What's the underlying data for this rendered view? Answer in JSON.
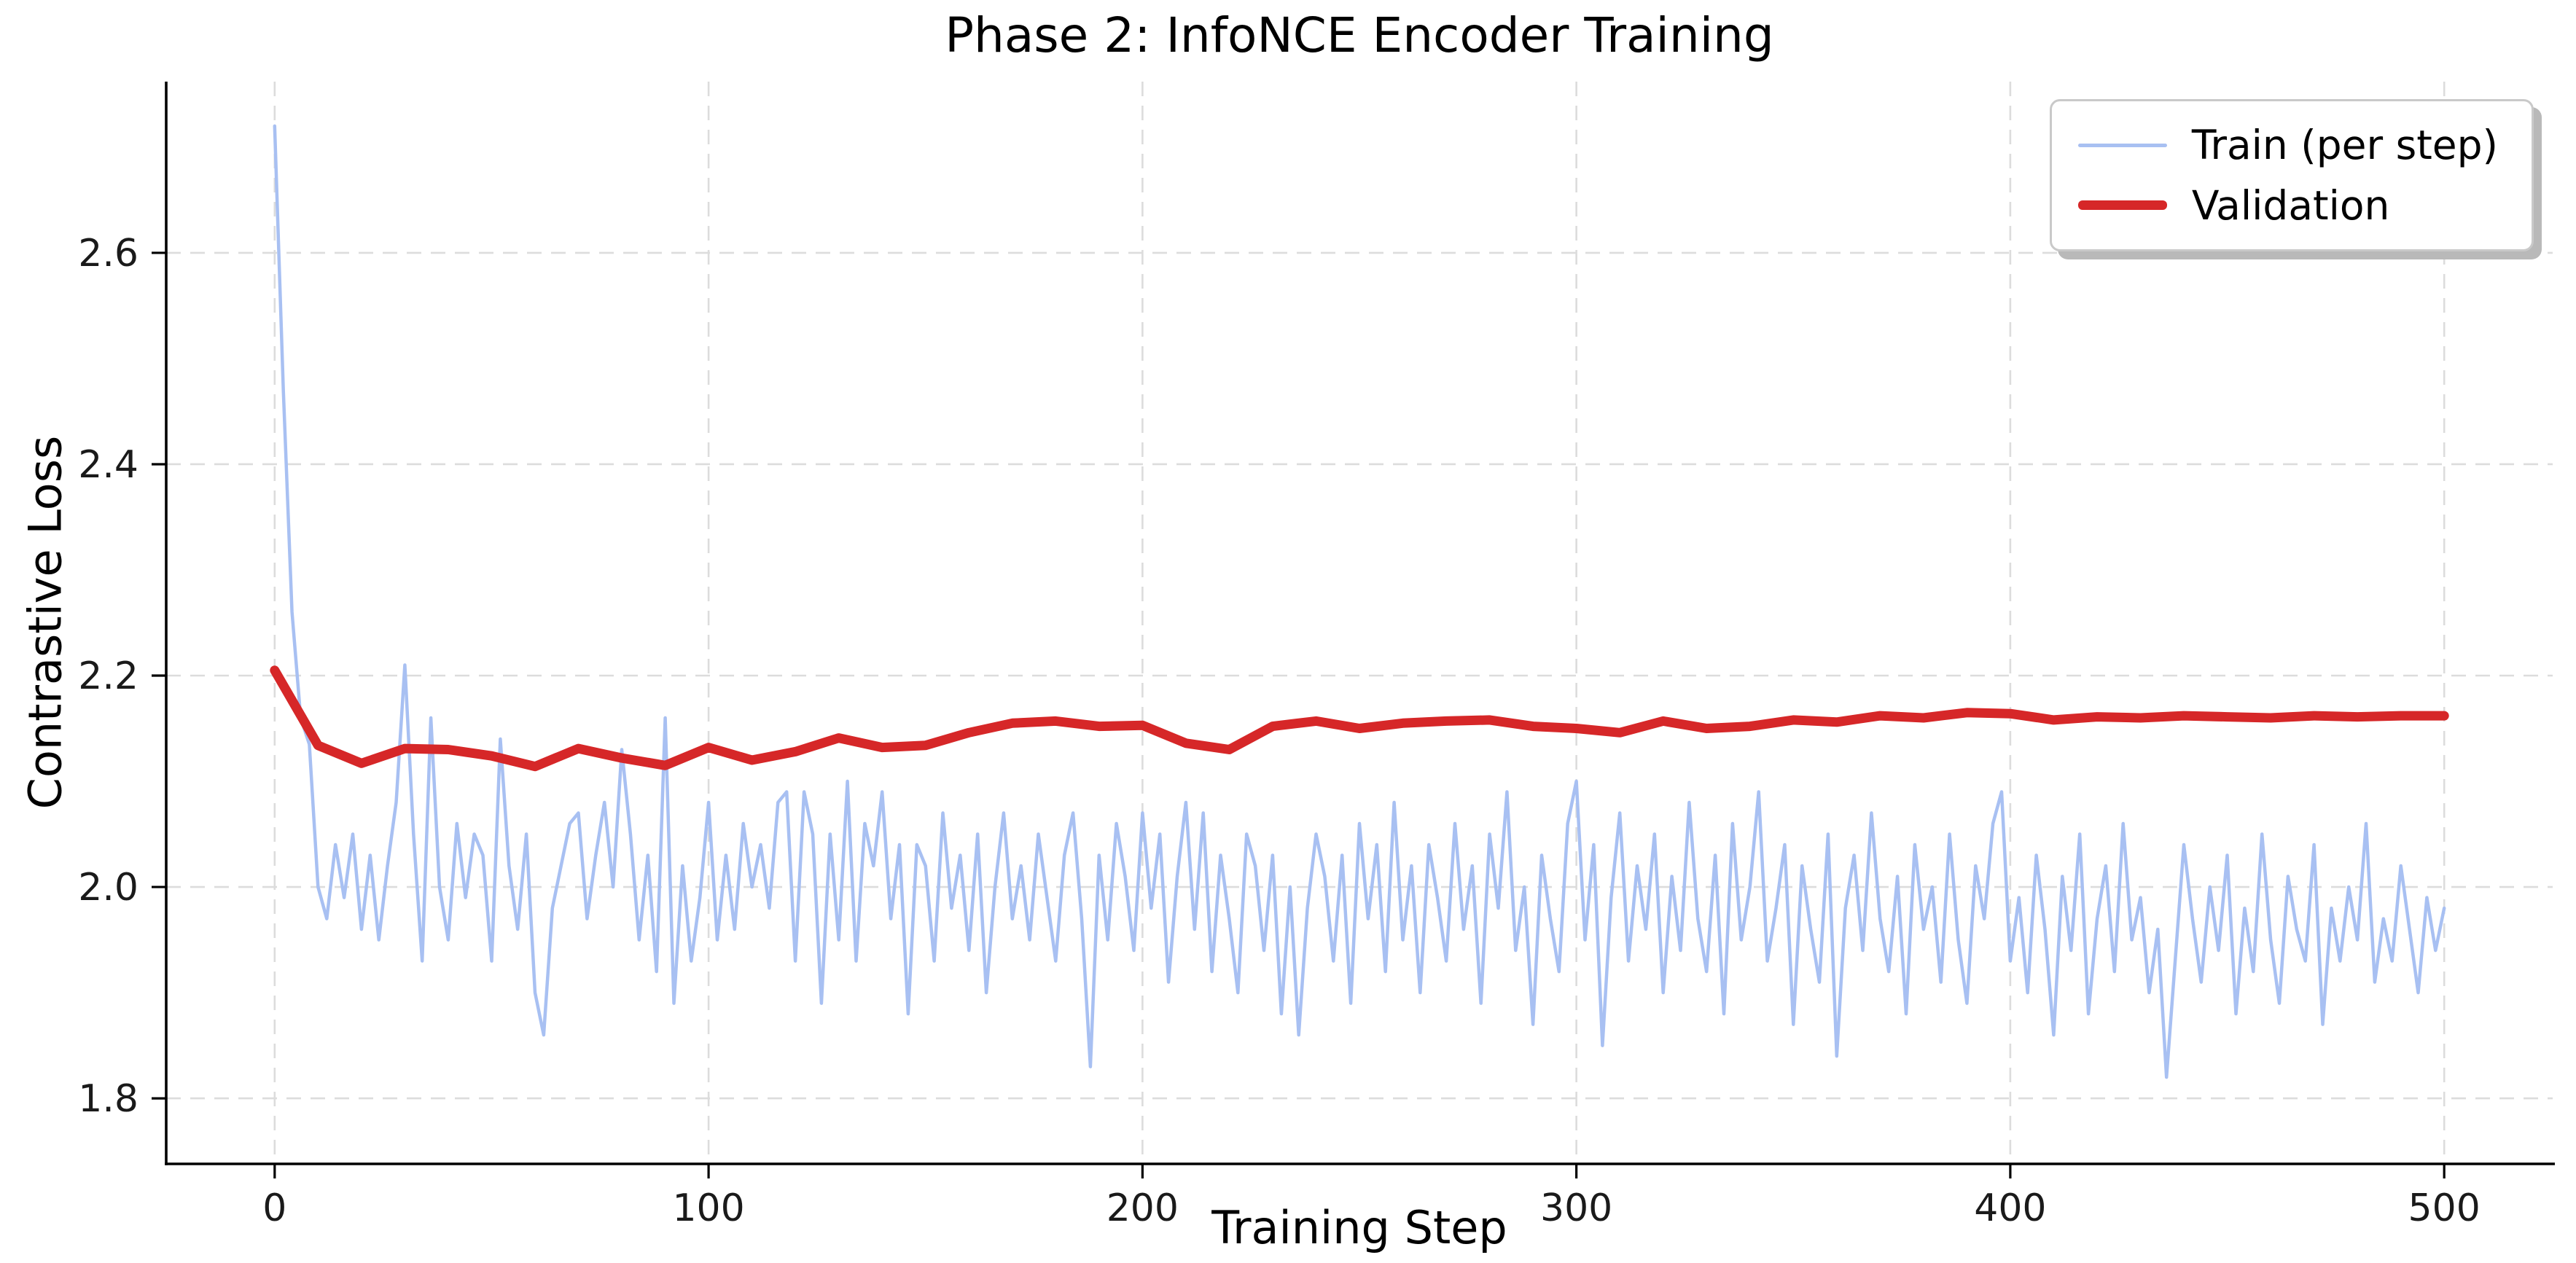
{
  "chart_data": {
    "type": "line",
    "title": "Phase 2: InfoNCE Encoder Training",
    "xlabel": "Training Step",
    "ylabel": "Contrastive Loss",
    "xlim": [
      -25,
      525
    ],
    "ylim": [
      1.738,
      2.762
    ],
    "grid": true,
    "grid_style": "dashed",
    "legend_position": "upper right",
    "xticks": {
      "values": [
        0,
        100,
        200,
        300,
        400,
        500
      ],
      "labels": [
        "0",
        "100",
        "200",
        "300",
        "400",
        "500"
      ]
    },
    "yticks": {
      "values": [
        1.8,
        2.0,
        2.2,
        2.4,
        2.6
      ],
      "labels": [
        "1.8",
        "2.0",
        "2.2",
        "2.4",
        "2.6"
      ]
    },
    "series": [
      {
        "name": "Train (per step)",
        "color": "#a8c0f2",
        "linewidth": 4.5,
        "x": [
          0,
          2,
          4,
          6,
          8,
          10,
          12,
          14,
          16,
          18,
          20,
          22,
          24,
          26,
          28,
          30,
          32,
          34,
          36,
          38,
          40,
          42,
          44,
          46,
          48,
          50,
          52,
          54,
          56,
          58,
          60,
          62,
          64,
          66,
          68,
          70,
          72,
          74,
          76,
          78,
          80,
          82,
          84,
          86,
          88,
          90,
          92,
          94,
          96,
          98,
          100,
          102,
          104,
          106,
          108,
          110,
          112,
          114,
          116,
          118,
          120,
          122,
          124,
          126,
          128,
          130,
          132,
          134,
          136,
          138,
          140,
          142,
          144,
          146,
          148,
          150,
          152,
          154,
          156,
          158,
          160,
          162,
          164,
          166,
          168,
          170,
          172,
          174,
          176,
          178,
          180,
          182,
          184,
          186,
          188,
          190,
          192,
          194,
          196,
          198,
          200,
          202,
          204,
          206,
          208,
          210,
          212,
          214,
          216,
          218,
          220,
          222,
          224,
          226,
          228,
          230,
          232,
          234,
          236,
          238,
          240,
          242,
          244,
          246,
          248,
          250,
          252,
          254,
          256,
          258,
          260,
          262,
          264,
          266,
          268,
          270,
          272,
          274,
          276,
          278,
          280,
          282,
          284,
          286,
          288,
          290,
          292,
          294,
          296,
          298,
          300,
          302,
          304,
          306,
          308,
          310,
          312,
          314,
          316,
          318,
          320,
          322,
          324,
          326,
          328,
          330,
          332,
          334,
          336,
          338,
          340,
          342,
          344,
          346,
          348,
          350,
          352,
          354,
          356,
          358,
          360,
          362,
          364,
          366,
          368,
          370,
          372,
          374,
          376,
          378,
          380,
          382,
          384,
          386,
          388,
          390,
          392,
          394,
          396,
          398,
          400,
          402,
          404,
          406,
          408,
          410,
          412,
          414,
          416,
          418,
          420,
          422,
          424,
          426,
          428,
          430,
          432,
          434,
          436,
          438,
          440,
          442,
          444,
          446,
          448,
          450,
          452,
          454,
          456,
          458,
          460,
          462,
          464,
          466,
          468,
          470,
          472,
          474,
          476,
          478,
          480,
          482,
          484,
          486,
          488,
          490,
          492,
          494,
          496,
          498,
          500
        ],
        "y": [
          2.72,
          2.47,
          2.26,
          2.16,
          2.135,
          2.0,
          1.97,
          2.04,
          1.99,
          2.05,
          1.96,
          2.03,
          1.95,
          2.02,
          2.08,
          2.21,
          2.05,
          1.93,
          2.16,
          2.0,
          1.95,
          2.06,
          1.99,
          2.05,
          2.03,
          1.93,
          2.14,
          2.02,
          1.96,
          2.05,
          1.9,
          1.86,
          1.98,
          2.02,
          2.06,
          2.07,
          1.97,
          2.03,
          2.08,
          2.0,
          2.13,
          2.05,
          1.95,
          2.03,
          1.92,
          2.16,
          1.89,
          2.02,
          1.93,
          1.99,
          2.08,
          1.95,
          2.03,
          1.96,
          2.06,
          2.0,
          2.04,
          1.98,
          2.08,
          2.09,
          1.93,
          2.09,
          2.05,
          1.89,
          2.05,
          1.95,
          2.1,
          1.93,
          2.06,
          2.02,
          2.09,
          1.97,
          2.04,
          1.88,
          2.04,
          2.02,
          1.93,
          2.07,
          1.98,
          2.03,
          1.94,
          2.05,
          1.9,
          2.0,
          2.07,
          1.97,
          2.02,
          1.95,
          2.05,
          1.99,
          1.93,
          2.03,
          2.07,
          1.97,
          1.83,
          2.03,
          1.95,
          2.06,
          2.01,
          1.94,
          2.07,
          1.98,
          2.05,
          1.91,
          2.01,
          2.08,
          1.96,
          2.07,
          1.92,
          2.03,
          1.97,
          1.9,
          2.05,
          2.02,
          1.94,
          2.03,
          1.88,
          2.0,
          1.86,
          1.98,
          2.05,
          2.01,
          1.93,
          2.03,
          1.89,
          2.06,
          1.97,
          2.04,
          1.92,
          2.08,
          1.95,
          2.02,
          1.9,
          2.04,
          1.99,
          1.93,
          2.06,
          1.96,
          2.02,
          1.89,
          2.05,
          1.98,
          2.09,
          1.94,
          2.0,
          1.87,
          2.03,
          1.97,
          1.92,
          2.06,
          2.1,
          1.95,
          2.04,
          1.85,
          1.99,
          2.07,
          1.93,
          2.02,
          1.96,
          2.05,
          1.9,
          2.01,
          1.94,
          2.08,
          1.97,
          1.92,
          2.03,
          1.88,
          2.06,
          1.95,
          2.0,
          2.09,
          1.93,
          1.98,
          2.04,
          1.87,
          2.02,
          1.96,
          1.91,
          2.05,
          1.84,
          1.98,
          2.03,
          1.94,
          2.07,
          1.97,
          1.92,
          2.01,
          1.88,
          2.04,
          1.96,
          2.0,
          1.91,
          2.05,
          1.95,
          1.89,
          2.02,
          1.97,
          2.06,
          2.09,
          1.93,
          1.99,
          1.9,
          2.03,
          1.96,
          1.86,
          2.01,
          1.94,
          2.05,
          1.88,
          1.97,
          2.02,
          1.92,
          2.06,
          1.95,
          1.99,
          1.9,
          1.96,
          1.82,
          1.93,
          2.04,
          1.97,
          1.91,
          2.0,
          1.94,
          2.03,
          1.88,
          1.98,
          1.92,
          2.05,
          1.95,
          1.89,
          2.01,
          1.96,
          1.93,
          2.04,
          1.87,
          1.98,
          1.93,
          2.0,
          1.95,
          2.06,
          1.91,
          1.97,
          1.93,
          2.02,
          1.96,
          1.9,
          1.99,
          1.94,
          1.98
        ]
      },
      {
        "name": "Validation",
        "color": "#d62728",
        "linewidth": 13,
        "x": [
          0,
          10,
          20,
          30,
          40,
          50,
          60,
          70,
          80,
          90,
          100,
          110,
          120,
          130,
          140,
          150,
          160,
          170,
          180,
          190,
          200,
          210,
          220,
          230,
          240,
          250,
          260,
          270,
          280,
          290,
          300,
          310,
          320,
          330,
          340,
          350,
          360,
          370,
          380,
          390,
          400,
          410,
          420,
          430,
          440,
          450,
          460,
          470,
          480,
          490,
          500
        ],
        "y": [
          2.205,
          2.134,
          2.117,
          2.131,
          2.13,
          2.124,
          2.114,
          2.131,
          2.122,
          2.115,
          2.132,
          2.12,
          2.128,
          2.141,
          2.132,
          2.134,
          2.146,
          2.155,
          2.157,
          2.152,
          2.153,
          2.136,
          2.13,
          2.152,
          2.157,
          2.15,
          2.155,
          2.157,
          2.158,
          2.152,
          2.15,
          2.146,
          2.157,
          2.15,
          2.152,
          2.158,
          2.156,
          2.162,
          2.16,
          2.165,
          2.164,
          2.158,
          2.161,
          2.16,
          2.162,
          2.161,
          2.16,
          2.162,
          2.161,
          2.162,
          2.162
        ]
      }
    ]
  },
  "style": {
    "background": "#ffffff",
    "grid_color": "#dcdcdc",
    "spine_color": "#000000",
    "tick_color": "#000000",
    "text_color": "#000000",
    "legend_border": "#c9c9c9",
    "legend_shadow": "#b9b9b9"
  }
}
